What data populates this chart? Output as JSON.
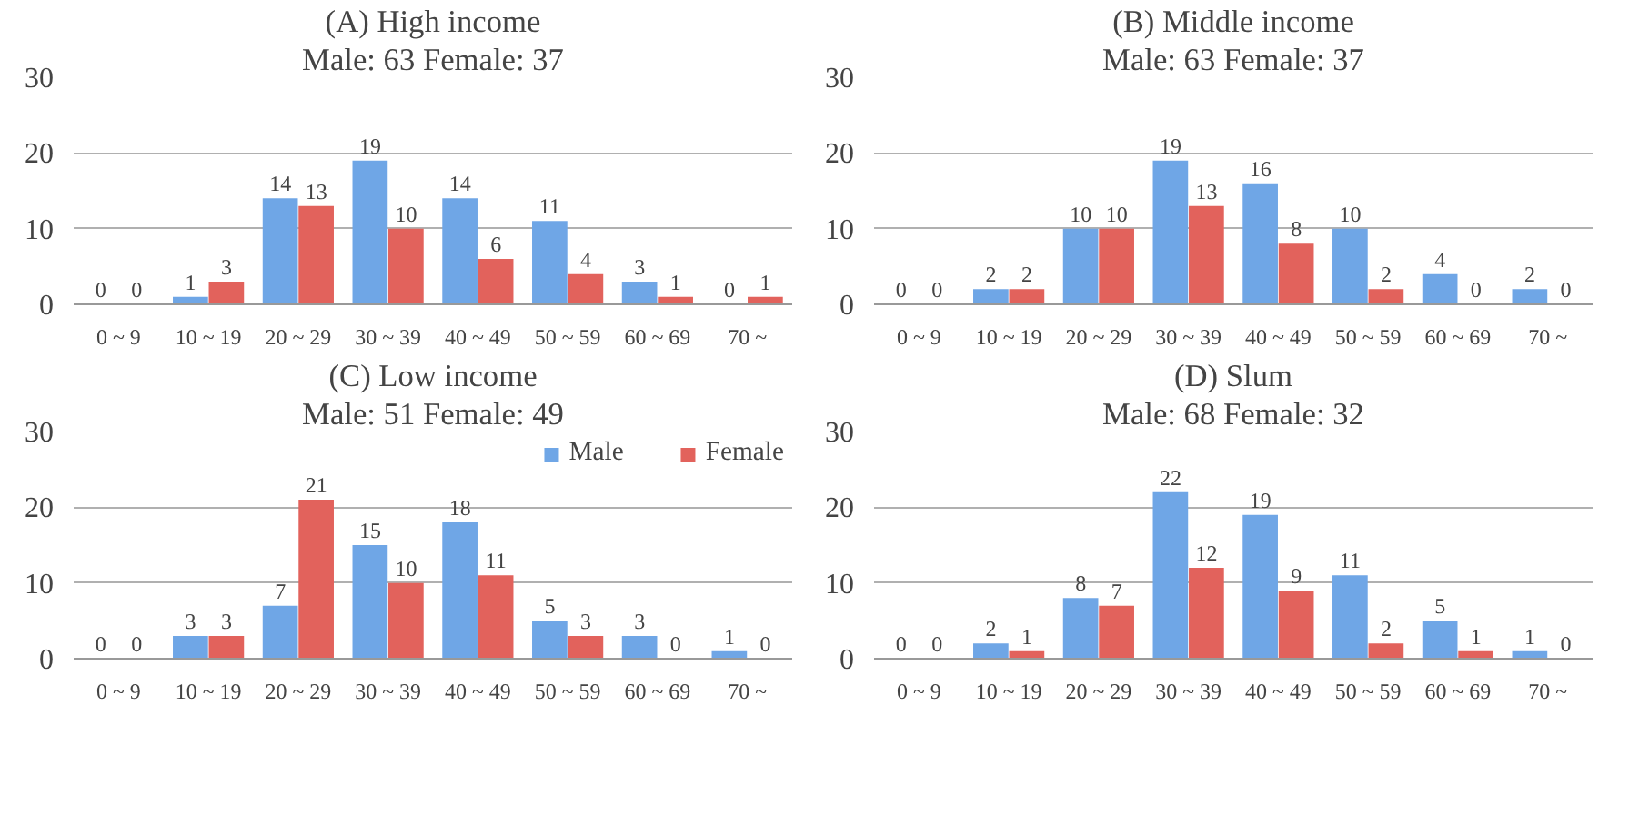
{
  "chart_data": [
    {
      "type": "bar",
      "title": "(A) High income",
      "subtitle": "Male: 63 Female: 37",
      "categories": [
        "0 ~ 9",
        "10 ~ 19",
        "20 ~ 29",
        "30 ~ 39",
        "40 ~ 49",
        "50 ~ 59",
        "60 ~ 69",
        "70 ~"
      ],
      "series": [
        {
          "color": "#6fa6e6",
          "values": [
            0,
            1,
            14,
            19,
            14,
            11,
            3,
            0
          ]
        },
        {
          "color": "#e2625c",
          "values": [
            0,
            3,
            13,
            10,
            6,
            4,
            1,
            1
          ]
        }
      ],
      "ylim": [
        0,
        30
      ],
      "yticks": [
        0,
        10,
        20,
        30
      ],
      "grid": "y",
      "data_labels": true
    },
    {
      "type": "bar",
      "title": "(B) Middle income",
      "subtitle": "Male: 63 Female: 37",
      "categories": [
        "0 ~ 9",
        "10 ~ 19",
        "20 ~ 29",
        "30 ~ 39",
        "40 ~ 49",
        "50 ~ 59",
        "60 ~ 69",
        "70 ~"
      ],
      "series": [
        {
          "color": "#6fa6e6",
          "values": [
            0,
            2,
            10,
            19,
            16,
            10,
            4,
            2
          ]
        },
        {
          "color": "#e2625c",
          "values": [
            0,
            2,
            10,
            13,
            8,
            2,
            0,
            0
          ]
        }
      ],
      "ylim": [
        0,
        30
      ],
      "yticks": [
        0,
        10,
        20,
        30
      ],
      "grid": "y",
      "data_labels": true
    },
    {
      "type": "bar",
      "title": "(C) Low income",
      "subtitle": "Male: 51 Female: 49",
      "categories": [
        "0 ~ 9",
        "10 ~ 19",
        "20 ~ 29",
        "30 ~ 39",
        "40 ~ 49",
        "50 ~ 59",
        "60 ~ 69",
        "70 ~"
      ],
      "series": [
        {
          "name": "Male",
          "color": "#6fa6e6",
          "values": [
            0,
            3,
            7,
            15,
            18,
            5,
            3,
            1
          ]
        },
        {
          "name": "Female",
          "color": "#e2625c",
          "values": [
            0,
            3,
            21,
            10,
            11,
            3,
            0,
            0
          ]
        }
      ],
      "ylim": [
        0,
        30
      ],
      "yticks": [
        0,
        10,
        20,
        30
      ],
      "grid": "y",
      "data_labels": true,
      "legend": "top right"
    },
    {
      "type": "bar",
      "title": "(D) Slum",
      "subtitle": "Male: 68 Female: 32",
      "categories": [
        "0 ~ 9",
        "10 ~ 19",
        "20 ~ 29",
        "30 ~ 39",
        "40 ~ 49",
        "50 ~ 59",
        "60 ~ 69",
        "70 ~"
      ],
      "series": [
        {
          "color": "#6fa6e6",
          "values": [
            0,
            2,
            8,
            22,
            19,
            11,
            5,
            1
          ]
        },
        {
          "color": "#e2625c",
          "values": [
            0,
            1,
            7,
            12,
            9,
            2,
            1,
            0
          ]
        }
      ],
      "ylim": [
        0,
        30
      ],
      "yticks": [
        0,
        10,
        20,
        30
      ],
      "grid": "y",
      "data_labels": true
    }
  ]
}
